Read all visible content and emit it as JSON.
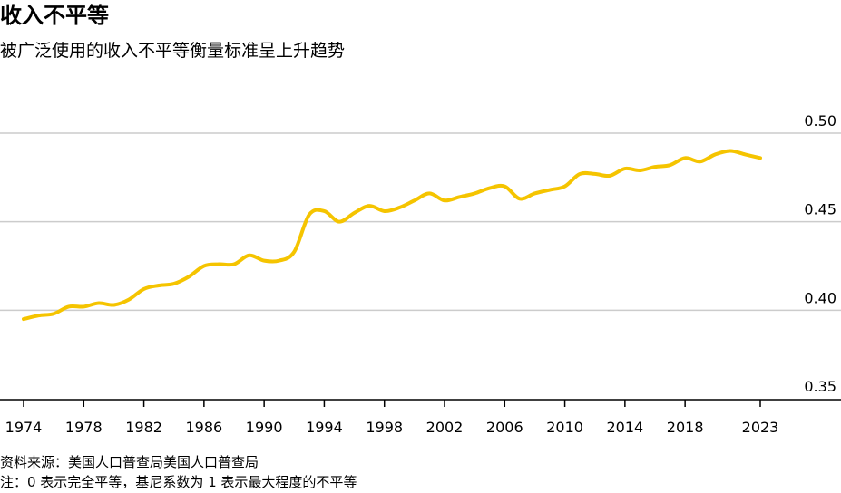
{
  "header": {
    "title": "收入不平等",
    "subtitle": "被广泛使用的收入不平等衡量标准呈上升趋势"
  },
  "footer": {
    "source": "资料来源：美国人口普查局美国人口普查局",
    "note": "注：0 表示完全平等，基尼系数为 1 表示最大程度的不平等"
  },
  "colors": {
    "line": "#F5C400",
    "grid": "#CCCCCC",
    "axis": "#000000"
  },
  "chart_data": {
    "type": "line",
    "title": "收入不平等",
    "subtitle": "被广泛使用的收入不平等衡量标准呈上升趋势",
    "xlabel": "",
    "ylabel": "",
    "xlim": [
      1974,
      2023
    ],
    "ylim": [
      0.35,
      0.5
    ],
    "grid": true,
    "legend": "none",
    "x_ticks": [
      "1974",
      "1978",
      "1982",
      "1986",
      "1990",
      "1994",
      "1998",
      "2002",
      "2006",
      "2010",
      "2014",
      "2018",
      "2023"
    ],
    "y_ticks": [
      "0.35",
      "0.40",
      "0.45",
      "0.50"
    ],
    "x": [
      1974,
      1975,
      1976,
      1977,
      1978,
      1979,
      1980,
      1981,
      1982,
      1983,
      1984,
      1985,
      1986,
      1987,
      1988,
      1989,
      1990,
      1991,
      1992,
      1993,
      1994,
      1995,
      1996,
      1997,
      1998,
      1999,
      2000,
      2001,
      2002,
      2003,
      2004,
      2005,
      2006,
      2007,
      2008,
      2009,
      2010,
      2011,
      2012,
      2013,
      2014,
      2015,
      2016,
      2017,
      2018,
      2019,
      2020,
      2021,
      2022,
      2023
    ],
    "series": [
      {
        "values": [
          0.395,
          0.397,
          0.398,
          0.402,
          0.402,
          0.404,
          0.403,
          0.406,
          0.412,
          0.414,
          0.415,
          0.419,
          0.425,
          0.426,
          0.426,
          0.431,
          0.428,
          0.428,
          0.433,
          0.454,
          0.456,
          0.45,
          0.455,
          0.459,
          0.456,
          0.458,
          0.462,
          0.466,
          0.462,
          0.464,
          0.466,
          0.469,
          0.47,
          0.463,
          0.466,
          0.468,
          0.47,
          0.477,
          0.477,
          0.476,
          0.48,
          0.479,
          0.481,
          0.482,
          0.486,
          0.484,
          0.488,
          0.49,
          0.488,
          0.486
        ]
      }
    ]
  }
}
